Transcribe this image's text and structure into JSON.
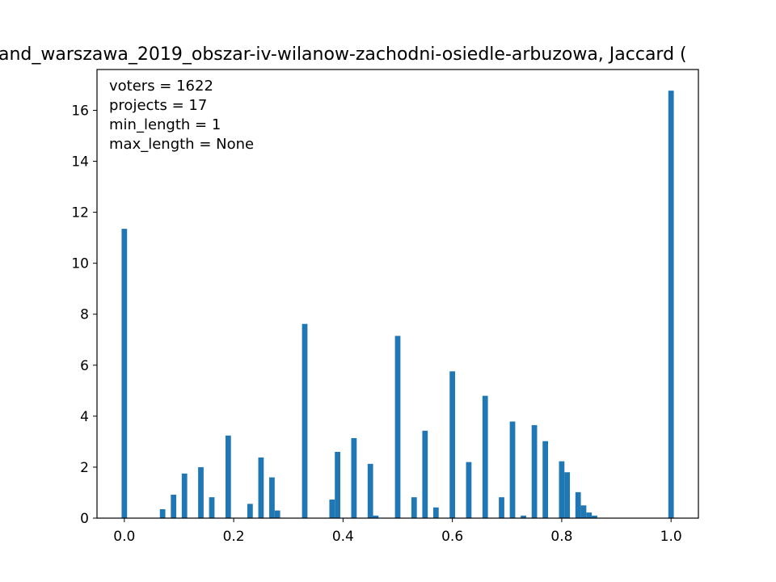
{
  "chart_data": {
    "type": "bar",
    "title": "and_warszawa_2019_obszar-iv-wilanow-zachodni-osiedle-arbuzowa, Jaccard (",
    "xlabel": "",
    "ylabel": "",
    "xlim": [
      -0.05,
      1.05
    ],
    "ylim": [
      0,
      17.6
    ],
    "xticks": [
      0.0,
      0.2,
      0.4,
      0.6,
      0.8,
      1.0
    ],
    "xtick_labels": [
      "0.0",
      "0.2",
      "0.4",
      "0.6",
      "0.8",
      "1.0"
    ],
    "yticks": [
      0,
      2,
      4,
      6,
      8,
      10,
      12,
      14,
      16
    ],
    "ytick_labels": [
      "0",
      "2",
      "4",
      "6",
      "8",
      "10",
      "12",
      "14",
      "16"
    ],
    "grid": false,
    "bar_color": "#1f77b4",
    "bin_width": 0.01,
    "annotations": [
      "voters = 1622",
      "projects = 17",
      "min_length = 1",
      "max_length = None"
    ],
    "bins": [
      {
        "x": 0.0,
        "y": 11.35
      },
      {
        "x": 0.07,
        "y": 0.35
      },
      {
        "x": 0.09,
        "y": 0.92
      },
      {
        "x": 0.11,
        "y": 1.75
      },
      {
        "x": 0.14,
        "y": 2.0
      },
      {
        "x": 0.16,
        "y": 0.82
      },
      {
        "x": 0.19,
        "y": 3.24
      },
      {
        "x": 0.23,
        "y": 0.56
      },
      {
        "x": 0.25,
        "y": 2.38
      },
      {
        "x": 0.27,
        "y": 1.6
      },
      {
        "x": 0.28,
        "y": 0.3
      },
      {
        "x": 0.33,
        "y": 7.62
      },
      {
        "x": 0.38,
        "y": 0.73
      },
      {
        "x": 0.39,
        "y": 2.6
      },
      {
        "x": 0.42,
        "y": 3.14
      },
      {
        "x": 0.45,
        "y": 2.13
      },
      {
        "x": 0.46,
        "y": 0.1
      },
      {
        "x": 0.5,
        "y": 7.15
      },
      {
        "x": 0.53,
        "y": 0.82
      },
      {
        "x": 0.55,
        "y": 3.43
      },
      {
        "x": 0.57,
        "y": 0.42
      },
      {
        "x": 0.6,
        "y": 5.76
      },
      {
        "x": 0.63,
        "y": 2.2
      },
      {
        "x": 0.66,
        "y": 4.8
      },
      {
        "x": 0.69,
        "y": 0.82
      },
      {
        "x": 0.71,
        "y": 3.79
      },
      {
        "x": 0.73,
        "y": 0.1
      },
      {
        "x": 0.75,
        "y": 3.65
      },
      {
        "x": 0.77,
        "y": 3.02
      },
      {
        "x": 0.8,
        "y": 2.23
      },
      {
        "x": 0.81,
        "y": 1.8
      },
      {
        "x": 0.83,
        "y": 1.02
      },
      {
        "x": 0.84,
        "y": 0.5
      },
      {
        "x": 0.85,
        "y": 0.22
      },
      {
        "x": 0.86,
        "y": 0.1
      },
      {
        "x": 1.0,
        "y": 16.77
      }
    ]
  }
}
